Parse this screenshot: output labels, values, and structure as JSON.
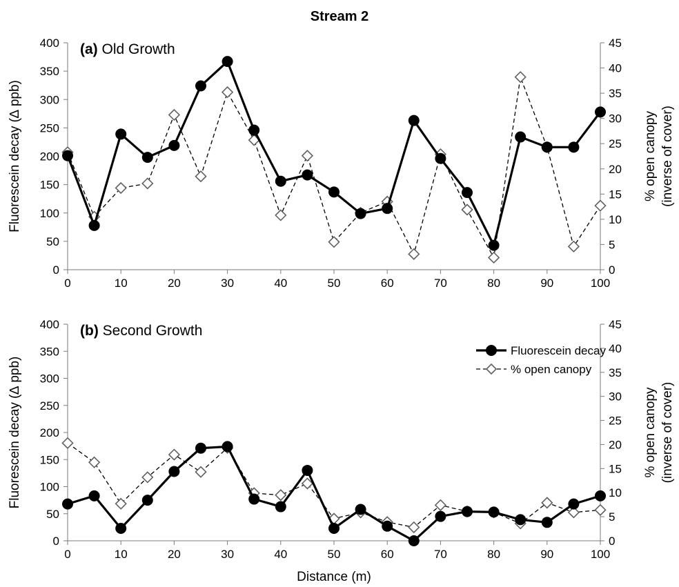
{
  "figure": {
    "title": "Stream 2",
    "xlabel": "Distance (m)"
  },
  "legend": {
    "items": [
      {
        "label": "Fluorescein decay",
        "style": "solid-filled-circle"
      },
      {
        "label": "% open canopy",
        "style": "dashed-open-diamond"
      }
    ]
  },
  "chart_data": [
    {
      "type": "line",
      "panel_prefix": "(a)",
      "panel_title": "Old Growth",
      "ylabel_left": "Fluorescein decay (∆ ppb)",
      "ylabel_right_line1": "% open canopy",
      "ylabel_right_line2": "(inverse of cover)",
      "x": [
        0,
        5,
        10,
        15,
        20,
        25,
        30,
        35,
        40,
        45,
        50,
        55,
        60,
        65,
        70,
        75,
        80,
        85,
        90,
        95,
        100
      ],
      "xticks": [
        0,
        10,
        20,
        30,
        40,
        50,
        60,
        70,
        80,
        90,
        100
      ],
      "xlim": [
        0,
        100
      ],
      "ylim_left": [
        0,
        400
      ],
      "yticks_left": [
        0,
        50,
        100,
        150,
        200,
        250,
        300,
        350,
        400
      ],
      "ylim_right": [
        0,
        45
      ],
      "yticks_right": [
        0,
        5,
        10,
        15,
        20,
        25,
        30,
        35,
        40,
        45
      ],
      "series": [
        {
          "name": "Fluorescein decay",
          "axis": "left",
          "color": "#000000",
          "values": [
            201,
            78,
            239,
            198,
            219,
            324,
            367,
            246,
            156,
            167,
            137,
            99,
            108,
            263,
            196,
            136,
            43,
            234,
            216,
            216,
            278
          ]
        },
        {
          "name": "% open canopy",
          "axis": "right",
          "color": "#000000",
          "values": [
            23.3,
            10.5,
            16.2,
            17.1,
            30.7,
            18.5,
            35.2,
            25.7,
            10.8,
            22.6,
            5.5,
            11.3,
            13.5,
            3.1,
            22.9,
            11.9,
            2.4,
            38.2,
            24.3,
            4.6,
            12.7
          ]
        }
      ],
      "legend": false
    },
    {
      "type": "line",
      "panel_prefix": "(b)",
      "panel_title": "Second Growth",
      "ylabel_left": "Fluorescein decay (∆ ppb)",
      "ylabel_right_line1": "% open canopy",
      "ylabel_right_line2": "(inverse of cover)",
      "x": [
        0,
        5,
        10,
        15,
        20,
        25,
        30,
        35,
        40,
        45,
        50,
        55,
        60,
        65,
        70,
        75,
        80,
        85,
        90,
        95,
        100
      ],
      "xticks": [
        0,
        10,
        20,
        30,
        40,
        50,
        60,
        70,
        80,
        90,
        100
      ],
      "xlim": [
        0,
        100
      ],
      "ylim_left": [
        0,
        400
      ],
      "yticks_left": [
        0,
        50,
        100,
        150,
        200,
        250,
        300,
        350,
        400
      ],
      "ylim_right": [
        0,
        45
      ],
      "yticks_right": [
        0,
        5,
        10,
        15,
        20,
        25,
        30,
        35,
        40,
        45
      ],
      "series": [
        {
          "name": "Fluorescein decay",
          "axis": "left",
          "color": "#000000",
          "values": [
            68,
            83,
            23,
            75,
            128,
            171,
            174,
            77,
            63,
            130,
            23,
            58,
            27,
            0,
            45,
            54,
            53,
            39,
            34,
            68,
            83
          ]
        },
        {
          "name": "% open canopy",
          "axis": "right",
          "color": "#000000",
          "values": [
            20.3,
            16.3,
            7.7,
            13.2,
            17.9,
            14.3,
            19.3,
            9.9,
            9.5,
            11.9,
            4.6,
            5.9,
            3.9,
            2.8,
            7.4,
            6.1,
            5.9,
            3.6,
            7.9,
            5.9,
            6.4
          ]
        }
      ],
      "legend": true,
      "legend_position": "top-right"
    }
  ]
}
